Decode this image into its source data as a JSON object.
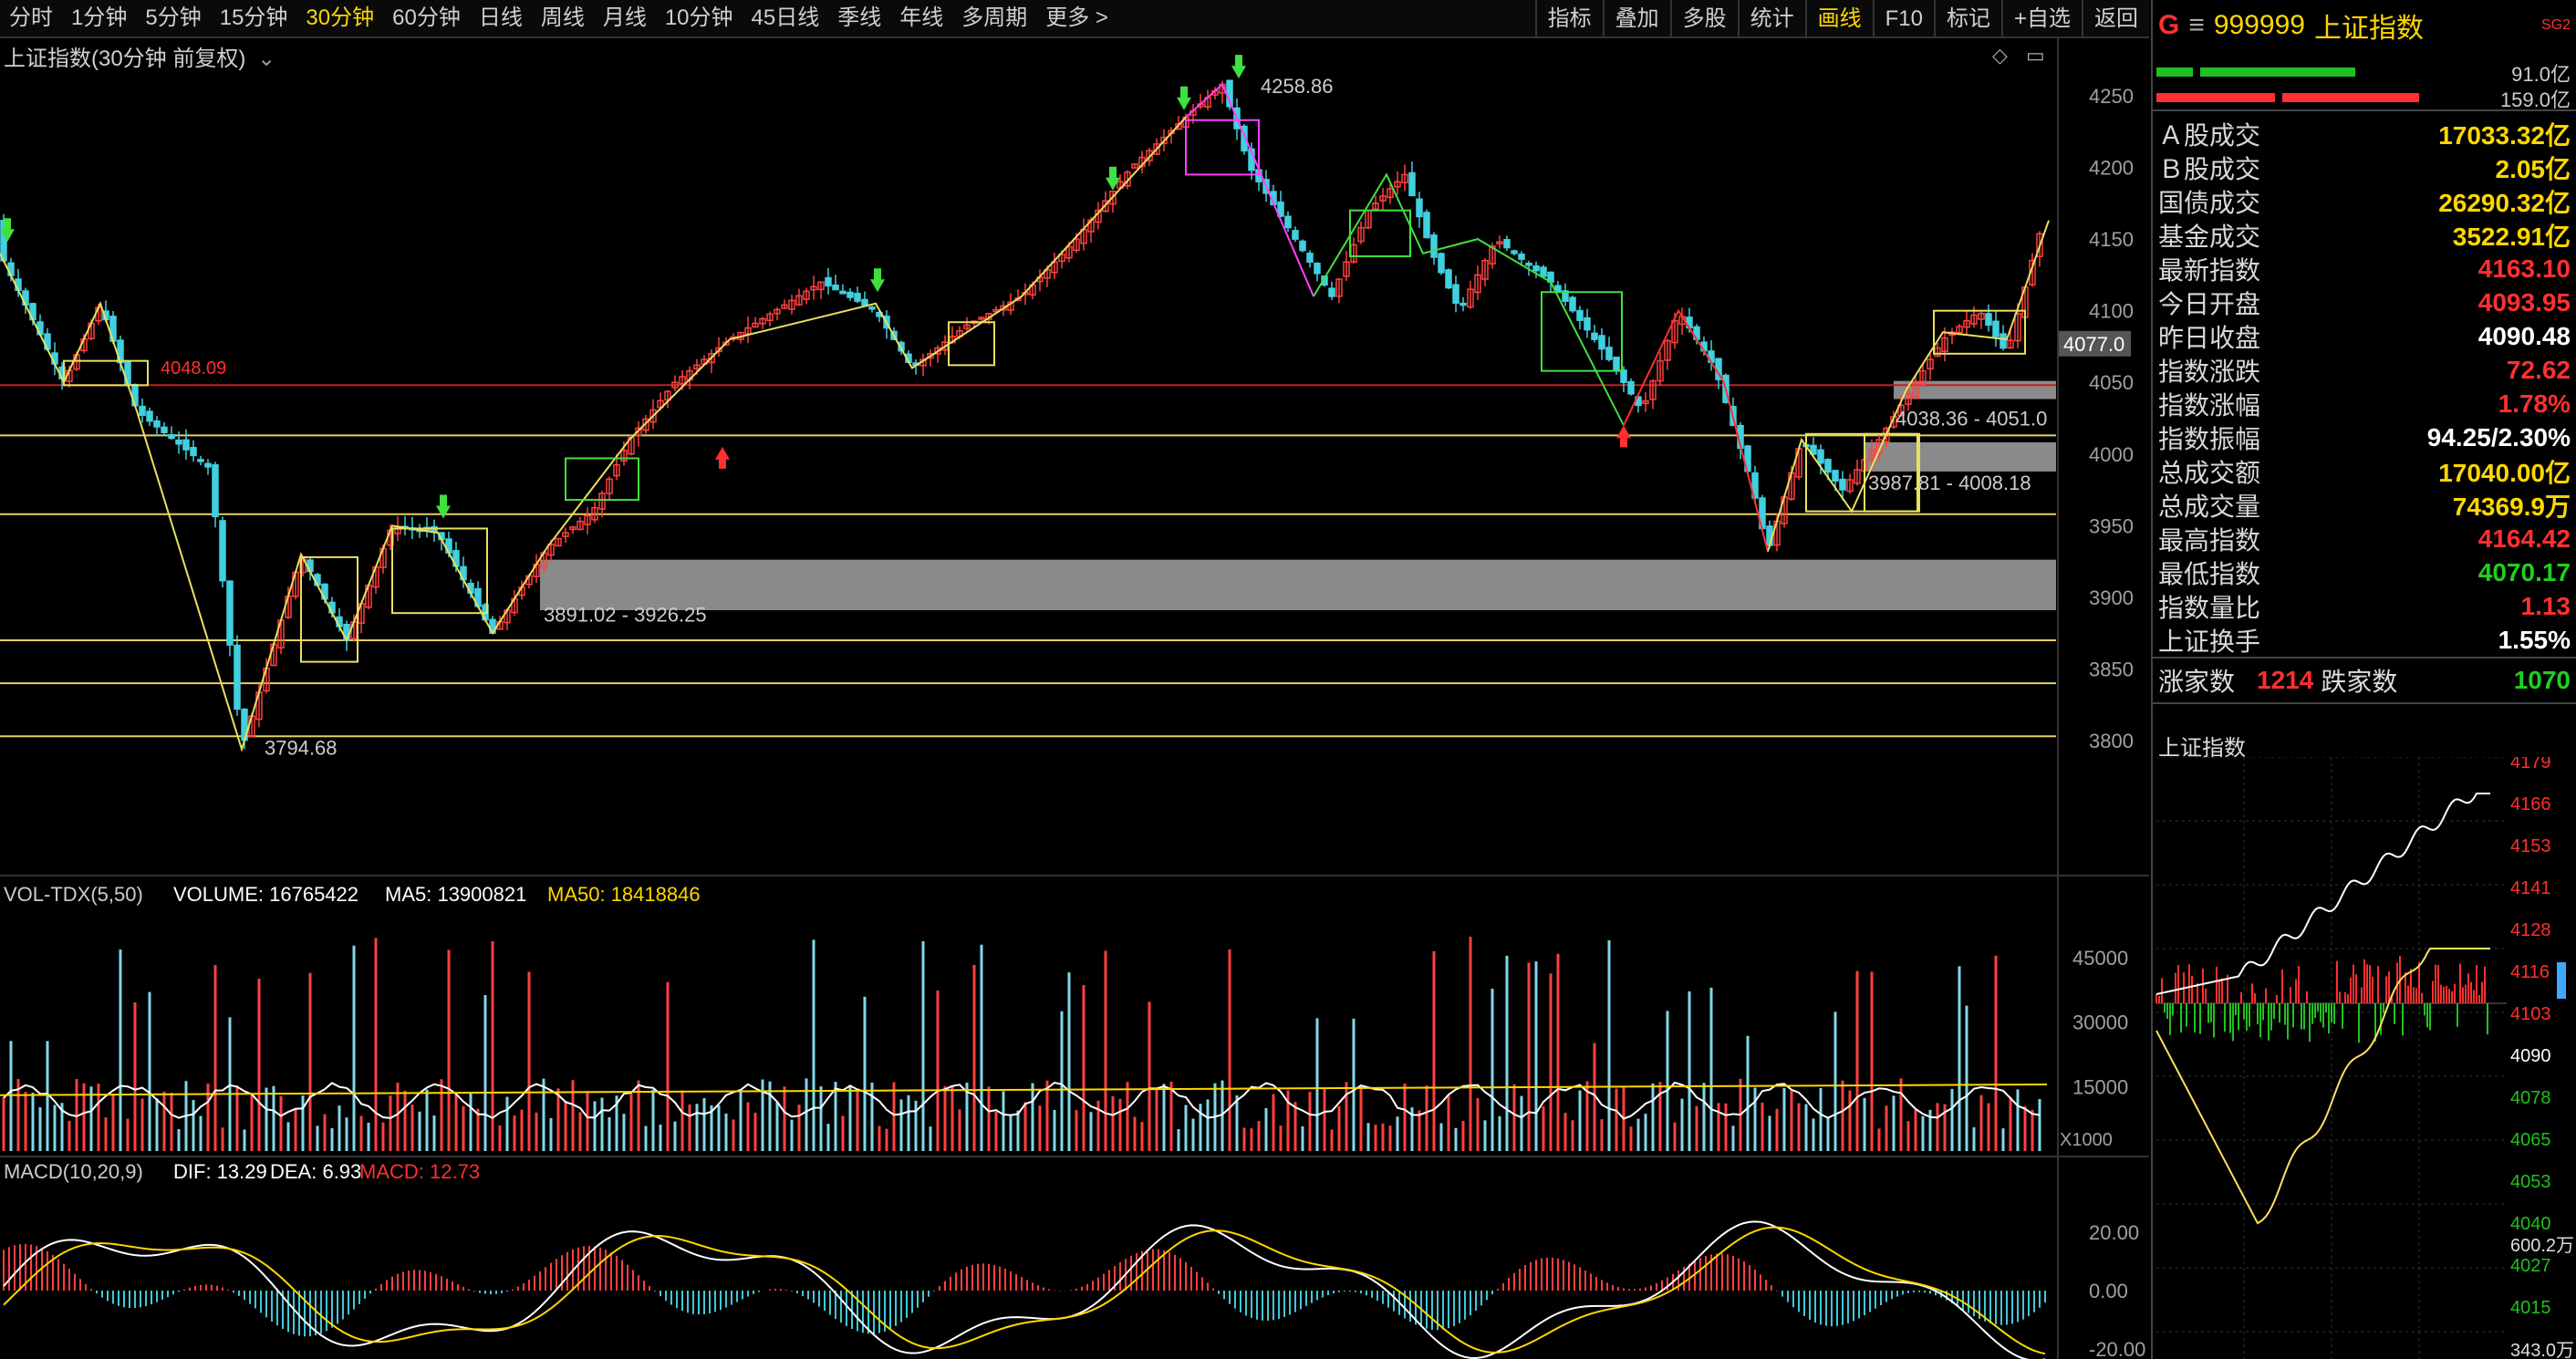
{
  "toolbar": {
    "timeframes": [
      "分时",
      "1分钟",
      "5分钟",
      "15分钟",
      "30分钟",
      "60分钟",
      "日线",
      "周线",
      "月线",
      "10分钟",
      "45日线",
      "季线",
      "年线",
      "多周期",
      "更多 >"
    ],
    "active_timeframe": "30分钟",
    "right_buttons": [
      "指标",
      "叠加",
      "多股",
      "统计",
      "画线",
      "F10",
      "标记",
      "+自选",
      "返回"
    ],
    "active_button": "画线"
  },
  "chart_title": "上证指数(30分钟 前复权)",
  "y_axis_labels": [
    "4250",
    "4200",
    "4150",
    "4100",
    "4050",
    "4000",
    "3950",
    "3900",
    "3850",
    "3800"
  ],
  "price_labels": {
    "high": "4258.86",
    "low": "3794.68",
    "red_line": "4048.09",
    "current": "4077.0",
    "zone1": "3891.02 - 3926.25",
    "zone2": "3987.81 - 4008.18",
    "zone3": "4038.36 - 4051.0"
  },
  "volume": {
    "title": "VOL-TDX(5,50)",
    "volume_label": "VOLUME: 16765422",
    "ma5_label": "MA5: 13900821",
    "ma50_label": "MA50: 18418846",
    "y_labels": [
      "45000",
      "30000",
      "15000"
    ],
    "unit": "X1000"
  },
  "macd": {
    "title": "MACD(10,20,9)",
    "dif_label": "DIF: 13.29",
    "dea_label": "DEA: 6.93",
    "macd_label": "MACD: 12.73",
    "y_labels": [
      "20.00",
      "0.00",
      "-20.00"
    ]
  },
  "side": {
    "marker": "G",
    "menu_icon": "≡",
    "code": "999999",
    "name": "上证指数",
    "badge": "SG2",
    "bar1_value": "91.0亿",
    "bar2_value": "159.0亿",
    "stats": [
      {
        "label": "Ａ股成交",
        "value": "17033.32亿",
        "color": "#ffd700"
      },
      {
        "label": "Ｂ股成交",
        "value": "2.05亿",
        "color": "#ffd700"
      },
      {
        "label": "国债成交",
        "value": "26290.32亿",
        "color": "#ffd700"
      },
      {
        "label": "基金成交",
        "value": "3522.91亿",
        "color": "#ffd700"
      },
      {
        "label": "最新指数",
        "value": "4163.10",
        "color": "#ff3030"
      },
      {
        "label": "今日开盘",
        "value": "4093.95",
        "color": "#ff3030"
      },
      {
        "label": "昨日收盘",
        "value": "4090.48",
        "color": "#ffffff"
      },
      {
        "label": "指数涨跌",
        "value": "72.62",
        "color": "#ff3030"
      },
      {
        "label": "指数涨幅",
        "value": "1.78%",
        "color": "#ff3030"
      },
      {
        "label": "指数振幅",
        "value": "94.25/2.30%",
        "color": "#ffffff"
      },
      {
        "label": "总成交额",
        "value": "17040.00亿",
        "color": "#ffd700"
      },
      {
        "label": "总成交量",
        "value": "74369.9万",
        "color": "#ffd700"
      },
      {
        "label": "最高指数",
        "value": "4164.42",
        "color": "#ff3030"
      },
      {
        "label": "最低指数",
        "value": "4070.17",
        "color": "#20d020"
      },
      {
        "label": "指数量比",
        "value": "1.13",
        "color": "#ff3030"
      },
      {
        "label": "上证换手",
        "value": "1.55%",
        "color": "#ffffff"
      }
    ],
    "up_label": "涨家数",
    "up_value": "1214",
    "down_label": "跌家数",
    "down_value": "1070",
    "intraday_title": "上证指数",
    "intraday_labels": [
      "4179",
      "4166",
      "4153",
      "4141",
      "4128",
      "4116",
      "4103",
      "4090",
      "4078",
      "4065",
      "4053",
      "4040",
      "4027",
      "4015"
    ],
    "intraday_vol_labels": [
      "600.2万",
      "343.0万"
    ]
  },
  "colors": {
    "up": "#ff3030",
    "down": "#20d020",
    "price_line": "#ffd700",
    "accent": "#ffd700"
  }
}
